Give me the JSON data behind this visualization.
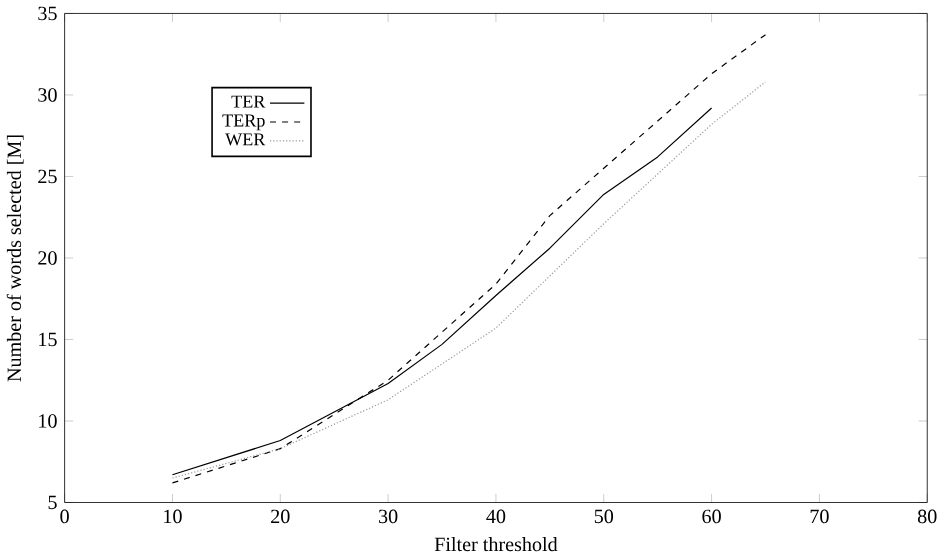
{
  "chart_data": {
    "type": "line",
    "xlabel": "Filter threshold",
    "ylabel": "Number of words selected [M]",
    "xlim": [
      0,
      80
    ],
    "ylim": [
      5,
      35
    ],
    "xticks": [
      0,
      10,
      20,
      30,
      40,
      50,
      60,
      70,
      80
    ],
    "yticks": [
      5,
      10,
      15,
      20,
      25,
      30,
      35
    ],
    "grid": false,
    "legend": "top left",
    "marker": "none",
    "series": [
      {
        "name": "TER",
        "color": "#000000",
        "line_style": "solid",
        "x": [
          10,
          20,
          30,
          35,
          40,
          45,
          50,
          55,
          60
        ],
        "values": [
          6.7,
          8.8,
          12.3,
          14.7,
          17.7,
          20.6,
          23.9,
          26.2,
          29.2
        ]
      },
      {
        "name": "TERp",
        "color": "#000000",
        "line_style": "dashed",
        "x": [
          10,
          20,
          30,
          40,
          45,
          50,
          55,
          60,
          65
        ],
        "values": [
          6.2,
          8.3,
          12.5,
          18.4,
          22.6,
          25.5,
          28.4,
          31.3,
          33.7
        ]
      },
      {
        "name": "WER",
        "color": "#999999",
        "line_style": "dotted",
        "x": [
          10,
          20,
          30,
          40,
          50,
          60,
          65
        ],
        "values": [
          6.5,
          8.3,
          11.3,
          15.7,
          22.1,
          28.2,
          30.8
        ]
      }
    ]
  }
}
